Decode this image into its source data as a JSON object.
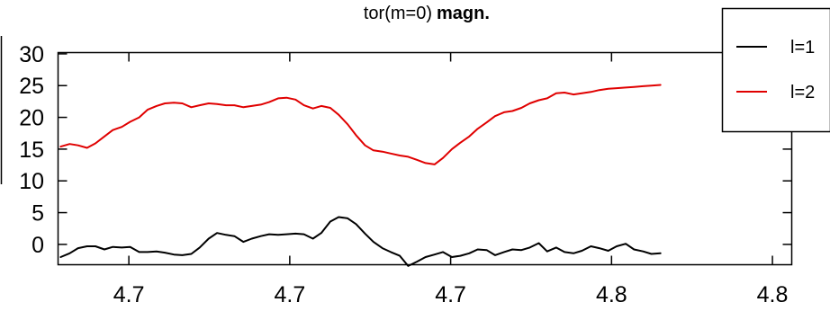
{
  "chart_data": {
    "type": "line",
    "title": "tor(m=0)",
    "title_bold": "magn.",
    "xlabel": "",
    "ylabel": "",
    "x_ticks": [
      "4.7",
      "4.7",
      "4.7",
      "4.8",
      "4.8"
    ],
    "x_tick_values": [
      4.7,
      4.725,
      4.75,
      4.775,
      4.8
    ],
    "xlim": [
      4.689,
      4.803
    ],
    "y_ticks": [
      "0",
      "5",
      "10",
      "15",
      "20",
      "25",
      "30"
    ],
    "y_tick_values": [
      0,
      5,
      10,
      15,
      20,
      25,
      30
    ],
    "ylim": [
      -3.2,
      30.2
    ],
    "grid": false,
    "legend_position": "top-right",
    "series": [
      {
        "name": "l=1",
        "color": "#000000",
        "x": [
          4.6894,
          4.6908,
          4.6921,
          4.6935,
          4.6948,
          4.6962,
          4.6975,
          4.6989,
          4.7002,
          4.7016,
          4.7029,
          4.7043,
          4.7056,
          4.707,
          4.7083,
          4.7097,
          4.711,
          4.7124,
          4.7137,
          4.7151,
          4.7164,
          4.7178,
          4.7191,
          4.7205,
          4.7218,
          4.7232,
          4.7245,
          4.7259,
          4.7272,
          4.7286,
          4.7299,
          4.7313,
          4.7326,
          4.734,
          4.7353,
          4.7367,
          4.738,
          4.7394,
          4.7407,
          4.7421,
          4.7434,
          4.7448,
          4.7461,
          4.7475,
          4.7488,
          4.7502,
          4.7515,
          4.7529,
          4.7542,
          4.7556,
          4.7569,
          4.7583,
          4.7596,
          4.761,
          4.7623,
          4.7637,
          4.765,
          4.7664,
          4.7677,
          4.7691,
          4.7704,
          4.7718,
          4.7731,
          4.7745,
          4.7758,
          4.7772,
          4.7785,
          4.7799,
          4.7812,
          4.7826
        ],
        "values": [
          -2.0,
          -1.4,
          -0.6,
          -0.3,
          -0.3,
          -0.8,
          -0.4,
          -0.5,
          -0.4,
          -1.2,
          -1.2,
          -1.1,
          -1.3,
          -1.6,
          -1.7,
          -1.5,
          -0.5,
          0.9,
          1.8,
          1.5,
          1.3,
          0.4,
          0.9,
          1.3,
          1.6,
          1.5,
          1.6,
          1.7,
          1.6,
          0.9,
          1.8,
          3.6,
          4.3,
          4.1,
          3.2,
          1.7,
          0.4,
          -0.6,
          -1.2,
          -1.8,
          -3.4,
          -2.7,
          -2.0,
          -1.6,
          -1.2,
          -2.0,
          -1.8,
          -1.4,
          -0.8,
          -0.9,
          -1.7,
          -1.2,
          -0.8,
          -0.9,
          -0.5,
          0.2,
          -1.1,
          -0.5,
          -1.2,
          -1.4,
          -1.0,
          -0.3,
          -0.6,
          -1.0,
          -0.3,
          0.1,
          -0.8,
          -1.1,
          -1.5,
          -1.4
        ],
        "x_note": "",
        "values_note": ""
      },
      {
        "name": "l=2",
        "color": "#e00000",
        "x": [
          4.6894,
          4.6908,
          4.6921,
          4.6935,
          4.6948,
          4.6962,
          4.6975,
          4.6989,
          4.7002,
          4.7016,
          4.7029,
          4.7043,
          4.7056,
          4.707,
          4.7083,
          4.7097,
          4.711,
          4.7124,
          4.7137,
          4.7151,
          4.7164,
          4.7178,
          4.7191,
          4.7205,
          4.7218,
          4.7232,
          4.7245,
          4.7259,
          4.7272,
          4.7286,
          4.7299,
          4.7313,
          4.7326,
          4.734,
          4.7353,
          4.7367,
          4.738,
          4.7394,
          4.7407,
          4.7421,
          4.7434,
          4.7448,
          4.7461,
          4.7475,
          4.7488,
          4.7502,
          4.7515,
          4.7529,
          4.7542,
          4.7556,
          4.7569,
          4.7583,
          4.7596,
          4.761,
          4.7623,
          4.7637,
          4.765,
          4.7664,
          4.7677,
          4.7691,
          4.7704,
          4.7718,
          4.7731,
          4.7745,
          4.7758,
          4.7772,
          4.7785,
          4.7799,
          4.7812,
          4.7826
        ],
        "values": [
          15.4,
          15.8,
          15.6,
          15.2,
          15.9,
          17.0,
          18.0,
          18.5,
          19.3,
          20.0,
          21.2,
          21.8,
          22.2,
          22.3,
          22.2,
          21.6,
          21.9,
          22.2,
          22.1,
          21.9,
          21.9,
          21.6,
          21.8,
          22.0,
          22.4,
          23.0,
          23.1,
          22.8,
          21.9,
          21.4,
          21.8,
          21.5,
          20.4,
          18.9,
          17.2,
          15.6,
          14.8,
          14.6,
          14.3,
          14.0,
          13.8,
          13.3,
          12.8,
          12.6,
          13.6,
          15.0,
          16.0,
          17.0,
          18.2,
          19.2,
          20.2,
          20.8,
          21.0,
          21.5,
          22.2,
          22.7,
          23.0,
          23.8,
          23.9,
          23.6,
          23.8,
          24.0,
          24.3,
          24.5,
          24.6,
          24.7,
          24.8,
          24.9,
          25.0,
          25.1
        ],
        "x_note": "",
        "values_note": ""
      }
    ]
  }
}
